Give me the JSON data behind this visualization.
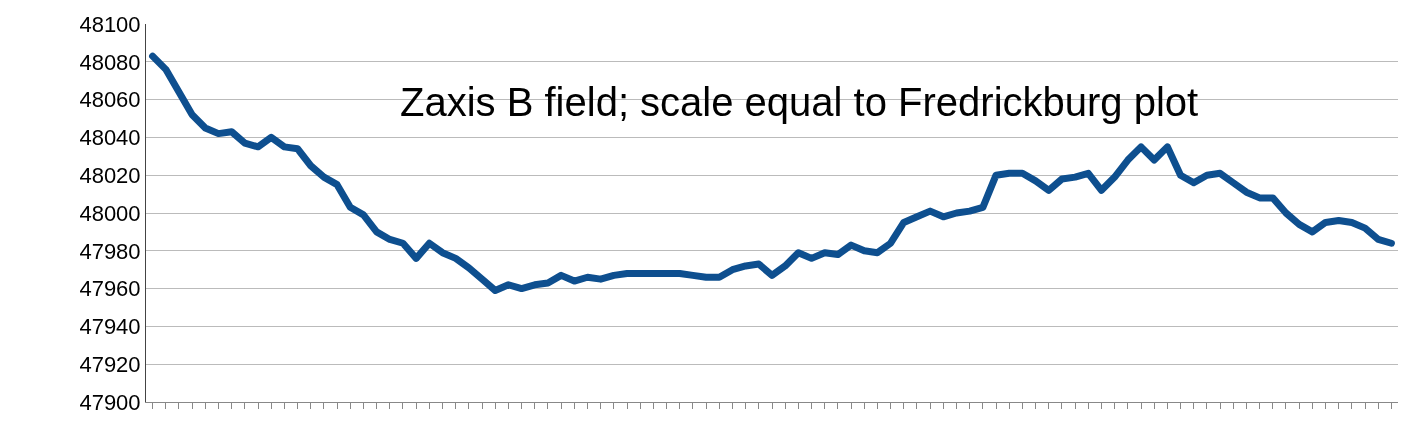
{
  "chart_data": {
    "type": "line",
    "title": "Zaxis B field; scale equal to Fredrickburg plot",
    "categories": [
      null,
      null,
      null,
      null,
      null,
      null,
      null,
      null,
      null,
      null,
      null,
      null,
      null,
      null,
      null,
      null,
      null,
      null,
      null,
      null,
      null,
      null,
      null,
      null,
      null,
      null,
      null,
      null,
      null,
      null,
      null,
      null,
      null,
      null,
      null,
      null,
      null,
      null,
      null,
      null,
      null,
      null,
      null,
      null,
      null,
      null,
      null,
      null,
      null,
      null,
      null,
      null,
      null,
      null,
      null,
      null,
      null,
      null,
      null,
      null,
      null,
      null,
      null,
      null,
      null,
      null,
      null,
      null,
      null,
      null,
      null,
      null,
      null,
      null,
      null,
      null,
      null,
      null,
      null,
      null,
      null,
      null,
      null,
      null,
      null,
      null,
      null,
      null,
      null,
      null,
      null,
      null,
      null,
      null,
      null
    ],
    "series": [
      {
        "color": "#0e4f8f",
        "values": [
          48083,
          48076,
          48064,
          48052,
          48045,
          48042,
          48043,
          48037,
          48035,
          48040,
          48035,
          48034,
          48025,
          48019,
          48015,
          48003,
          47999,
          47990,
          47986,
          47984,
          47976,
          47984,
          47979,
          47976,
          47971,
          47965,
          47959,
          47962,
          47960,
          47962,
          47963,
          47967,
          47964,
          47966,
          47965,
          47967,
          47968,
          47968,
          47968,
          47968,
          47968,
          47967,
          47966,
          47966,
          47970,
          47972,
          47973,
          47967,
          47972,
          47979,
          47976,
          47979,
          47978,
          47983,
          47980,
          47979,
          47984,
          47995,
          47998,
          48001,
          47998,
          48000,
          48001,
          48003,
          48020,
          48021,
          48021,
          48017,
          48012,
          48018,
          48019,
          48021,
          48012,
          48019,
          48028,
          48035,
          48028,
          48035,
          48020,
          48016,
          48020,
          48021,
          48016,
          48011,
          48008,
          48008,
          48000,
          47994,
          47990,
          47995,
          47996,
          47995,
          47992,
          47986,
          47984
        ]
      }
    ],
    "ylim": [
      47900,
      48100
    ],
    "yticks": [
      47900,
      47920,
      47940,
      47960,
      47980,
      48000,
      48020,
      48040,
      48060,
      48080,
      48100
    ],
    "tick_labels": "y",
    "grid": "y",
    "marker": "none",
    "line_style": "solid"
  }
}
